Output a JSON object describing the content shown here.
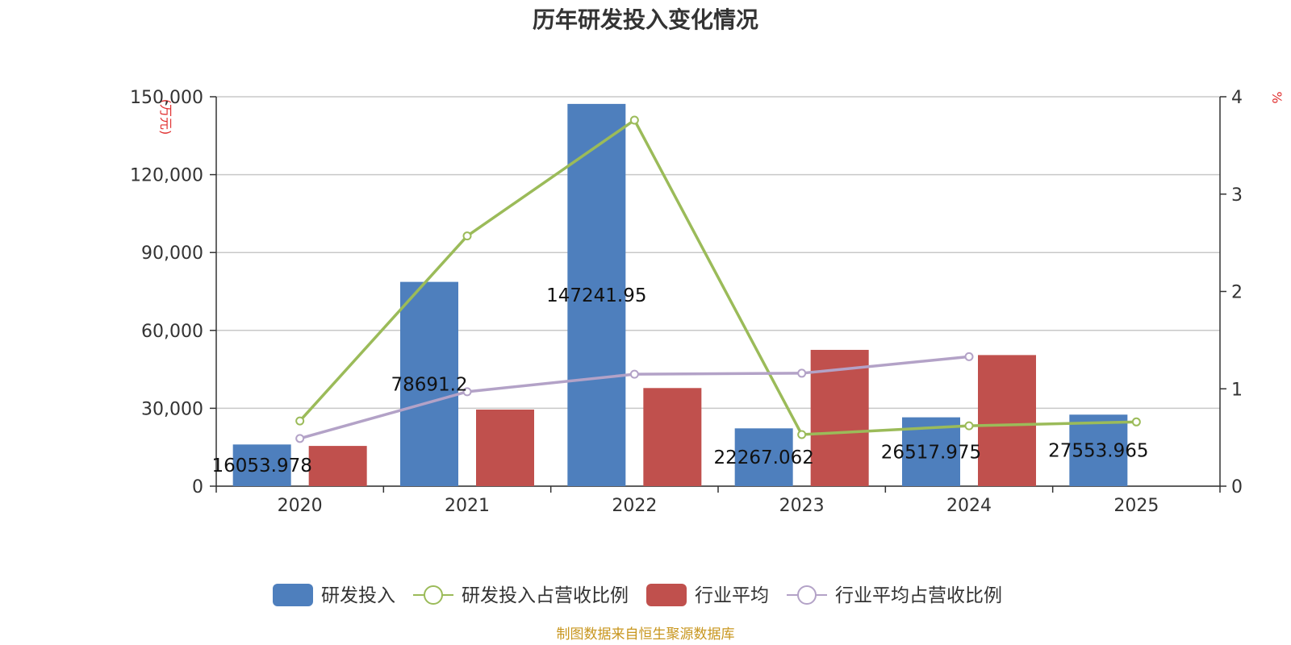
{
  "chart_data": {
    "type": "bar",
    "title": "历年研发投入变化情况",
    "categories": [
      "2020",
      "2021",
      "2022",
      "2023",
      "2024",
      "2025"
    ],
    "y_left": {
      "unit": "(万元)",
      "range": [
        0,
        150000
      ],
      "ticks": [
        "0",
        "30,000",
        "60,000",
        "90,000",
        "120,000",
        "150,000"
      ],
      "tick_values": [
        0,
        30000,
        60000,
        90000,
        120000,
        150000
      ]
    },
    "y_right": {
      "unit": "%",
      "range": [
        0,
        4
      ],
      "ticks": [
        "0",
        "1",
        "2",
        "3",
        "4"
      ],
      "tick_values": [
        0,
        1,
        2,
        3,
        4
      ]
    },
    "grid": true,
    "legend_position": "bottom",
    "series": [
      {
        "name": "研发投入",
        "kind": "bar",
        "axis": "left",
        "color": "#4e7fbd",
        "values": [
          16053.978,
          78691.2,
          147241.95,
          22267.062,
          26517.975,
          27553.965
        ],
        "labels": [
          "16053.978",
          "78691.2",
          "147241.95",
          "22267.062",
          "26517.975",
          "27553.965"
        ]
      },
      {
        "name": "研发投入占营收比例",
        "kind": "line",
        "axis": "right",
        "color": "#9bbb59",
        "values": [
          0.67,
          2.57,
          3.76,
          0.53,
          0.62,
          0.66
        ]
      },
      {
        "name": "行业平均",
        "kind": "bar",
        "axis": "left",
        "color": "#c0504d",
        "values": [
          15500,
          29500,
          37800,
          52500,
          50500,
          null
        ]
      },
      {
        "name": "行业平均占营收比例",
        "kind": "line",
        "axis": "right",
        "color": "#b3a2c7",
        "values": [
          0.49,
          0.97,
          1.15,
          1.16,
          1.33,
          null
        ]
      }
    ]
  },
  "footer": {
    "source": "制图数据来自恒生聚源数据库"
  }
}
